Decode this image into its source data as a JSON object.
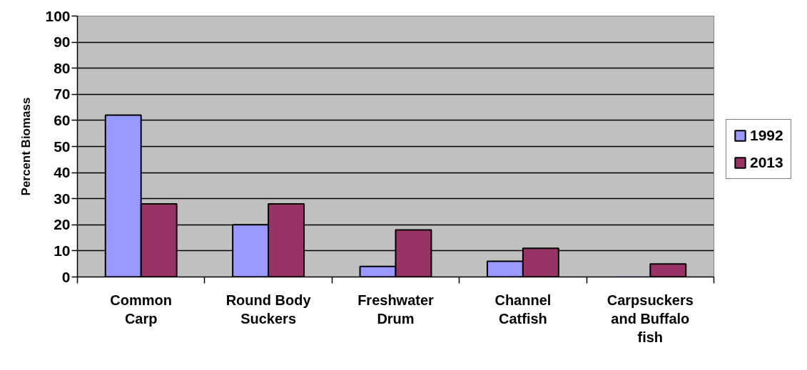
{
  "chart_data": {
    "type": "bar",
    "categories": [
      "Common Carp",
      "Round Body Suckers",
      "Freshwater Drum",
      "Channel Catfish",
      "Carpsuckers and Buffalo fish"
    ],
    "series": [
      {
        "name": "1992",
        "color": "#9999ff",
        "values": [
          62,
          20,
          4,
          6,
          0
        ]
      },
      {
        "name": "2013",
        "color": "#993366",
        "values": [
          28,
          28,
          18,
          11,
          5
        ]
      }
    ],
    "ylabel": "Percent Biomass",
    "ylim": [
      0,
      100
    ],
    "yticks": [
      0,
      10,
      20,
      30,
      40,
      50,
      60,
      70,
      80,
      90,
      100
    ],
    "grid": "y",
    "legend": "right"
  }
}
